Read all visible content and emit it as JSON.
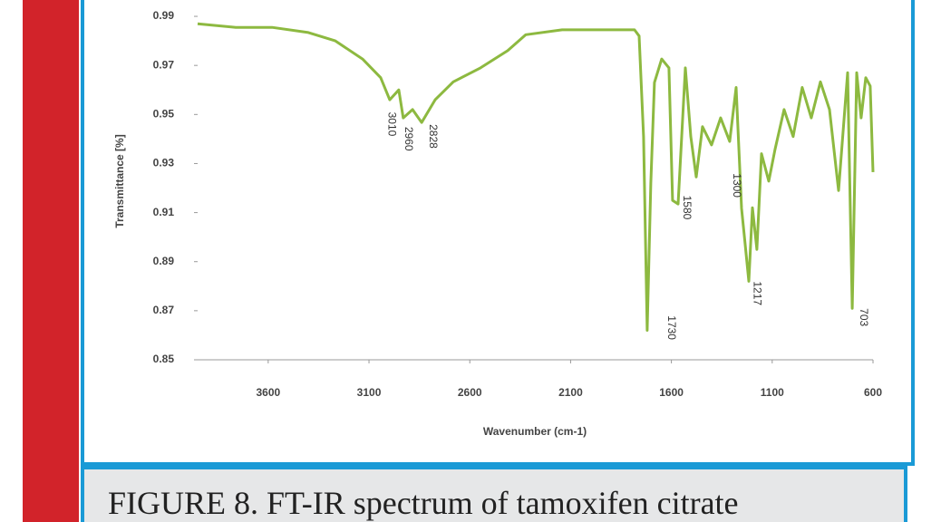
{
  "chart_data": {
    "type": "line",
    "x_label": "Wavenumber (cm-1)",
    "y_label": "Transmittance [%]",
    "caption": "FIGURE 8. FT-IR spectrum of tamoxifen citrate",
    "x": [
      3950,
      3761,
      3581,
      3401,
      3267,
      3132,
      3042,
      2997,
      2952,
      2930,
      2884,
      2839,
      2772,
      2682,
      2547,
      2412,
      2322,
      2142,
      1783,
      1760,
      1738,
      1720,
      1702,
      1684,
      1648,
      1612,
      1594,
      1567,
      1531,
      1504,
      1477,
      1446,
      1401,
      1356,
      1311,
      1279,
      1252,
      1234,
      1216,
      1198,
      1176,
      1153,
      1117,
      1086,
      1041,
      996,
      951,
      906,
      861,
      816,
      771,
      726,
      703,
      681,
      659,
      636,
      614,
      600
    ],
    "values": [
      0.987,
      0.9855,
      0.9855,
      0.9834,
      0.98,
      0.9726,
      0.965,
      0.956,
      0.96,
      0.9486,
      0.952,
      0.9467,
      0.956,
      0.9633,
      0.969,
      0.976,
      0.9825,
      0.9845,
      0.9845,
      0.982,
      0.941,
      0.862,
      0.922,
      0.963,
      0.9726,
      0.969,
      0.915,
      0.9135,
      0.969,
      0.941,
      0.9245,
      0.945,
      0.9376,
      0.9486,
      0.939,
      0.961,
      0.9117,
      0.897,
      0.882,
      0.912,
      0.895,
      0.934,
      0.9228,
      0.9357,
      0.952,
      0.941,
      0.961,
      0.9486,
      0.9633,
      0.952,
      0.919,
      0.967,
      0.871,
      0.967,
      0.9486,
      0.965,
      0.9616,
      0.9265
    ],
    "color": "#8db940",
    "xlim": [
      3950,
      600
    ],
    "xticks": [
      3600,
      3100,
      2600,
      2100,
      1600,
      1100,
      600
    ],
    "ylim": [
      0.85,
      0.995
    ],
    "yticks": [
      0.85,
      0.87,
      0.89,
      0.91,
      0.93,
      0.95,
      0.97,
      0.99
    ],
    "annotations": [
      {
        "text": "3010",
        "x": 2990,
        "y": 0.951
      },
      {
        "text": "2960",
        "x": 2907,
        "y": 0.945
      },
      {
        "text": "2828",
        "x": 2785,
        "y": 0.946
      },
      {
        "text": "1730",
        "x": 1603,
        "y": 0.868
      },
      {
        "text": "1580",
        "x": 1526,
        "y": 0.917
      },
      {
        "text": "1300",
        "x": 1279,
        "y": 0.926
      },
      {
        "text": "1217",
        "x": 1176,
        "y": 0.882
      },
      {
        "text": "703",
        "x": 649,
        "y": 0.871
      }
    ]
  }
}
